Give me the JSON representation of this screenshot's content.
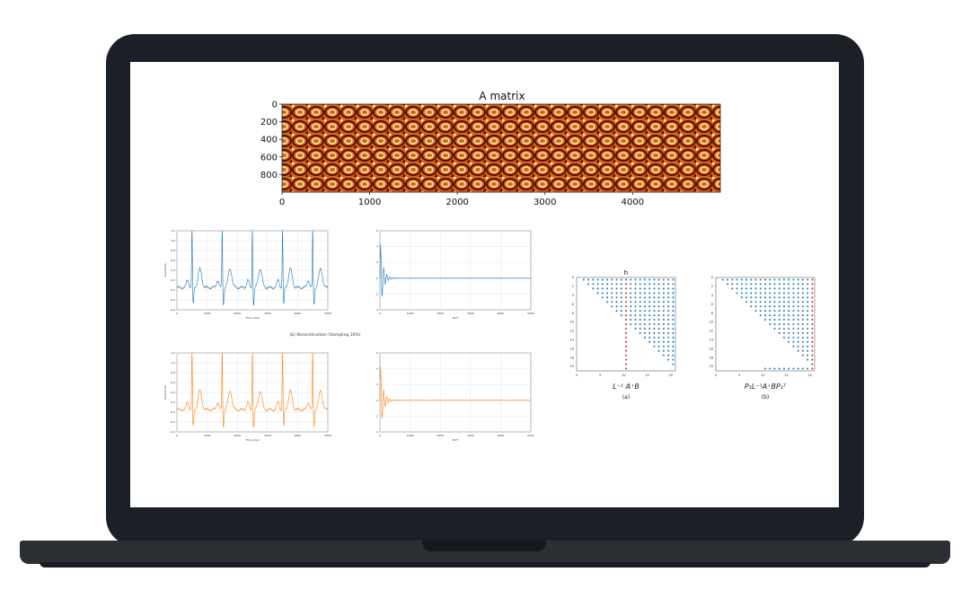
{
  "colors": {
    "blue": "#1f77b4",
    "orange": "#ff7f0e",
    "red_marker": "#d62728",
    "laptop_frame": "#1a2026",
    "heatmap_dark": "#5a0a00",
    "heatmap_mid": "#d2691e",
    "heatmap_light": "#fff2a8"
  },
  "icons": {
    "device": "laptop-icon"
  },
  "chart_data": [
    {
      "type": "heatmap",
      "title": "A matrix",
      "xticks": [
        "0",
        "1000",
        "2000",
        "3000",
        "4000"
      ],
      "yticks": [
        "0",
        "200",
        "400",
        "600",
        "800"
      ],
      "xlim": [
        0,
        5000
      ],
      "ylim": [
        0,
        1000
      ],
      "colormap": "afmhot"
    },
    {
      "type": "line",
      "series_color": "blue",
      "xlabel": "Time (ms)",
      "ylabel": "Amplitude",
      "xticks": [
        "0",
        "1000",
        "2000",
        "3000",
        "4000",
        "5000"
      ],
      "yticks": [
        "1.2",
        "1.0",
        "0.8",
        "0.6",
        "0.4",
        "0.2",
        "0.0",
        "-0.2",
        "-0.4"
      ],
      "xlim": [
        0,
        5000
      ],
      "ylim": [
        -0.4,
        1.2
      ],
      "grid": true
    },
    {
      "type": "line",
      "series_color": "blue",
      "xlabel": "DCT",
      "xticks": [
        "0",
        "1000",
        "2000",
        "3000",
        "4000",
        "5000"
      ],
      "yticks": [
        "6",
        "4",
        "2",
        "0",
        "-2",
        "-4"
      ],
      "xlim": [
        0,
        5000
      ],
      "ylim": [
        -4,
        6
      ],
      "grid": true
    },
    {
      "type": "line",
      "series_color": "orange",
      "xlabel": "Time (ms)",
      "ylabel": "Amplitude",
      "xticks": [
        "0",
        "1000",
        "2000",
        "3000",
        "4000",
        "5000"
      ],
      "yticks": [
        "1.2",
        "1.0",
        "0.8",
        "0.6",
        "0.4",
        "0.2",
        "0.0",
        "-0.2",
        "-0.4"
      ],
      "xlim": [
        0,
        5000
      ],
      "ylim": [
        -0.4,
        1.2
      ],
      "grid": true
    },
    {
      "type": "line",
      "series_color": "orange",
      "xlabel": "DCT",
      "xticks": [
        "0",
        "1000",
        "2000",
        "3000",
        "4000",
        "5000"
      ],
      "yticks": [
        "6",
        "4",
        "2",
        "0",
        "-2",
        "-4"
      ],
      "xlim": [
        0,
        5000
      ],
      "ylim": [
        -4,
        6
      ],
      "grid": true
    },
    {
      "type": "scatter",
      "title": "h",
      "caption_math": "L⁻¹ A⁺B",
      "caption_label": "(a)",
      "xticks": [
        "0",
        "5",
        "10",
        "15",
        "20"
      ],
      "yticks": [
        "0",
        "2",
        "4",
        "6",
        "8",
        "10",
        "12",
        "14",
        "16",
        "18",
        "20"
      ],
      "xlim": [
        0,
        21
      ],
      "ylim": [
        0,
        21
      ],
      "marker_column": 10
    },
    {
      "type": "scatter",
      "caption_math": "P₁L⁻¹A⁺BP₁ᵀ",
      "caption_label": "(b)",
      "xticks": [
        "0",
        "5",
        "10",
        "15",
        "20"
      ],
      "yticks": [
        "0",
        "2",
        "4",
        "6",
        "8",
        "10",
        "12",
        "14",
        "16",
        "18",
        "20"
      ],
      "xlim": [
        0,
        21
      ],
      "ylim": [
        0,
        21
      ],
      "marker_column": 20
    }
  ],
  "section_caption": "(b) Reconstruction (Sampling 10%)"
}
